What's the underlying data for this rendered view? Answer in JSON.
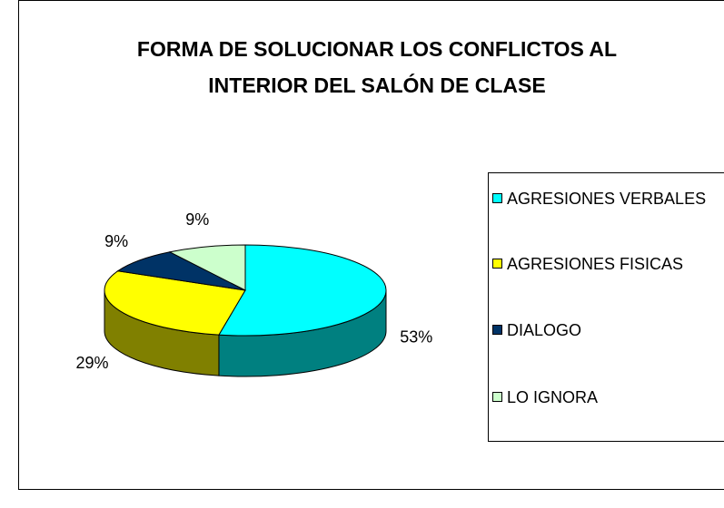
{
  "chart_data": {
    "type": "pie3d",
    "title": "FORMA DE SOLUCIONAR LOS CONFLICTOS AL INTERIOR DEL SALÓN DE CLASE",
    "categories": [
      "AGRESIONES VERBALES",
      "AGRESIONES FISICAS",
      "DIALOGO",
      "LO IGNORA"
    ],
    "values": [
      53,
      29,
      9,
      9
    ],
    "value_labels": [
      "53%",
      "29%",
      "9%",
      "9%"
    ],
    "colors": [
      "#00FFFF",
      "#FFFF00",
      "#003366",
      "#CCFFCC"
    ],
    "side_colors": [
      "#008080",
      "#808000",
      "#001A33",
      "#99BB99"
    ],
    "legend": "right"
  }
}
